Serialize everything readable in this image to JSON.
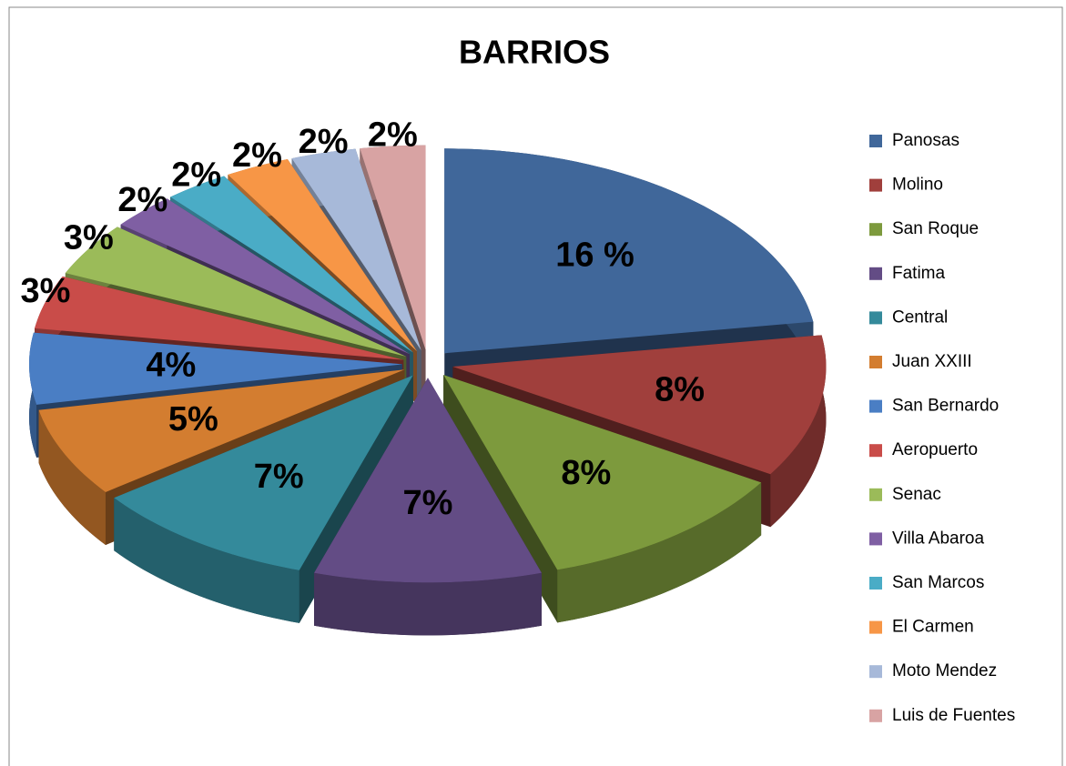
{
  "chart_data": {
    "type": "pie",
    "title": "BARRIOS",
    "categories": [
      "Panosas",
      "Molino",
      "San Roque",
      "Fatima",
      "Central",
      "Juan XXIII",
      "San Bernardo",
      "Aeropuerto",
      "Senac",
      "Villa Abaroa",
      "San Marcos",
      "El Carmen",
      "Moto Mendez",
      "Luis de Fuentes"
    ],
    "values": [
      16,
      8,
      8,
      7,
      7,
      5,
      4,
      3,
      3,
      2,
      2,
      2,
      2,
      2
    ],
    "value_labels": [
      "16 %",
      "8%",
      "8%",
      "7%",
      "7%",
      "5%",
      "4%",
      "3%",
      "3%",
      "2%",
      "2%",
      "2%",
      "2%",
      "2%"
    ],
    "colors": [
      "#40679a",
      "#a03f3c",
      "#7d9a3d",
      "#634c85",
      "#348a9b",
      "#d37d30",
      "#4a7ec4",
      "#c94c49",
      "#9bbb59",
      "#7f5fa3",
      "#4aacc6",
      "#f79646",
      "#a7b9d9",
      "#d8a3a3"
    ],
    "legend": "right"
  }
}
